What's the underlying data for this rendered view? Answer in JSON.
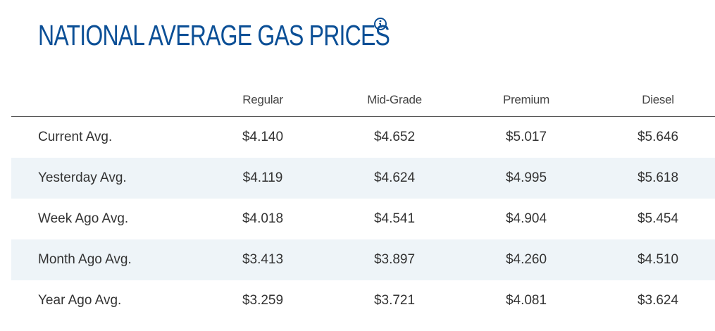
{
  "title": "NATIONAL AVERAGE GAS PRICES",
  "icons": {
    "info": "info-circle-icon"
  },
  "colors": {
    "title": "#0b4f96",
    "shaded_row": "#eef4f8",
    "text": "#333333"
  },
  "table": {
    "columns": [
      "Regular",
      "Mid-Grade",
      "Premium",
      "Diesel"
    ],
    "rows": [
      {
        "label": "Current Avg.",
        "values": [
          "$4.140",
          "$4.652",
          "$5.017",
          "$5.646"
        ]
      },
      {
        "label": "Yesterday Avg.",
        "values": [
          "$4.119",
          "$4.624",
          "$4.995",
          "$5.618"
        ]
      },
      {
        "label": "Week Ago Avg.",
        "values": [
          "$4.018",
          "$4.541",
          "$4.904",
          "$5.454"
        ]
      },
      {
        "label": "Month Ago Avg.",
        "values": [
          "$3.413",
          "$3.897",
          "$4.260",
          "$4.510"
        ]
      },
      {
        "label": "Year Ago Avg.",
        "values": [
          "$3.259",
          "$3.721",
          "$4.081",
          "$3.624"
        ]
      }
    ]
  }
}
